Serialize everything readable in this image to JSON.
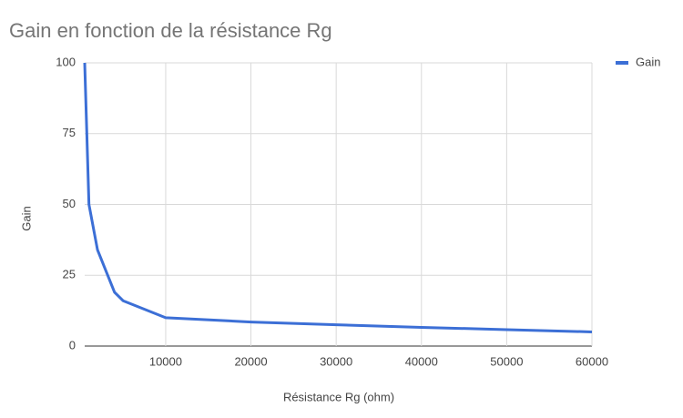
{
  "chart_data": {
    "type": "line",
    "title": "Gain en fonction de la résistance Rg",
    "x_label": "Résistance Rg (ohm)",
    "y_label": "Gain",
    "x": [
      500,
      1000,
      2000,
      4000,
      5000,
      10000,
      20000,
      30000,
      40000,
      50000,
      60000
    ],
    "series": [
      {
        "name": "Gain",
        "color": "#3c6fd6",
        "values": [
          100,
          50,
          34,
          19,
          16,
          10,
          8.5,
          7.5,
          6.6,
          5.8,
          5
        ]
      }
    ],
    "xlim": [
      500,
      60000
    ],
    "xticks": [
      10000,
      20000,
      30000,
      40000,
      50000,
      60000
    ],
    "ylim": [
      0,
      100
    ],
    "yticks": [
      0,
      25,
      50,
      75,
      100
    ],
    "grid": true,
    "legend": "top-right"
  }
}
